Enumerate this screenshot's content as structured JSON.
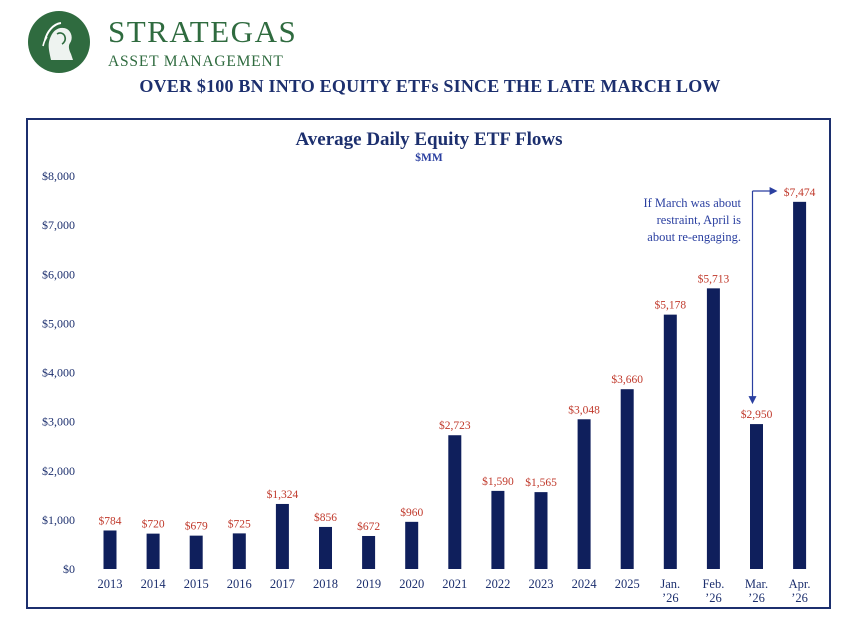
{
  "brand": {
    "name": "STRATEGAS",
    "subtitle": "ASSET MANAGEMENT"
  },
  "headline": "OVER $100 BN INTO EQUITY ETFs SINCE THE LATE MARCH LOW",
  "colors": {
    "brand_green": "#2f6b3f",
    "navy": "#1c2f6e",
    "bar": "#0f1f5c",
    "label_red": "#c0392b",
    "annotation_blue": "#2a3fa0"
  },
  "chart_data": {
    "type": "bar",
    "title": "Average Daily Equity ETF Flows",
    "subtitle": "$MM",
    "categories": [
      "2013",
      "2014",
      "2015",
      "2016",
      "2017",
      "2018",
      "2019",
      "2020",
      "2021",
      "2022",
      "2023",
      "2024",
      "2025",
      "Jan. '26",
      "Feb. '26",
      "Mar. '26",
      "Apr. '26"
    ],
    "category_lines": [
      [
        "2013"
      ],
      [
        "2014"
      ],
      [
        "2015"
      ],
      [
        "2016"
      ],
      [
        "2017"
      ],
      [
        "2018"
      ],
      [
        "2019"
      ],
      [
        "2020"
      ],
      [
        "2021"
      ],
      [
        "2022"
      ],
      [
        "2023"
      ],
      [
        "2024"
      ],
      [
        "2025"
      ],
      [
        "Jan.",
        "’26"
      ],
      [
        "Feb.",
        "’26"
      ],
      [
        "Mar.",
        "’26"
      ],
      [
        "Apr.",
        "’26"
      ]
    ],
    "values": [
      784,
      720,
      679,
      725,
      1324,
      856,
      672,
      960,
      2723,
      1590,
      1565,
      3048,
      3660,
      5178,
      5713,
      2950,
      7474
    ],
    "data_labels": [
      "$784",
      "$720",
      "$679",
      "$725",
      "$1,324",
      "$856",
      "$672",
      "$960",
      "$2,723",
      "$1,590",
      "$1,565",
      "$3,048",
      "$3,660",
      "$5,178",
      "$5,713",
      "$2,950",
      "$7,474"
    ],
    "ylim": [
      0,
      8000
    ],
    "yticks": [
      0,
      1000,
      2000,
      3000,
      4000,
      5000,
      6000,
      7000,
      8000
    ],
    "ytick_labels": [
      "$0",
      "$1,000",
      "$2,000",
      "$3,000",
      "$4,000",
      "$5,000",
      "$6,000",
      "$7,000",
      "$8,000"
    ],
    "grid": false,
    "annotation": {
      "lines": [
        "If March was about",
        "restraint, April is",
        "about re-engaging."
      ],
      "points_to": [
        "Mar. '26",
        "Apr. '26"
      ]
    }
  }
}
